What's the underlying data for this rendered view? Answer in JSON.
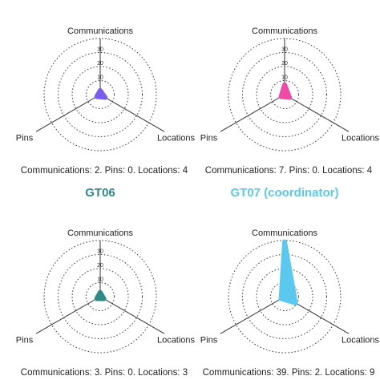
{
  "chart_data": [
    {
      "type": "radar",
      "title": "",
      "axes": [
        "Communications",
        "Pins",
        "Locations"
      ],
      "ticks": [
        "10",
        "20",
        "30"
      ],
      "rmax": 40,
      "color": "#7b5cf0",
      "values": [
        2,
        0,
        4
      ],
      "caption": "Communications: 2. Pins: 0. Locations: 4"
    },
    {
      "type": "radar",
      "title": "",
      "axes": [
        "Communications",
        "Pins",
        "Locations"
      ],
      "ticks": [
        "10",
        "20",
        "30"
      ],
      "rmax": 40,
      "color": "#f04aa8",
      "values": [
        7,
        0,
        4
      ],
      "caption": "Communications: 7. Pins: 0. Locations: 4"
    },
    {
      "type": "radar",
      "title": "GT06",
      "title_color": "#2e8b84",
      "axes": [
        "Communications",
        "Pins",
        "Locations"
      ],
      "ticks": [
        "10",
        "20",
        "30"
      ],
      "rmax": 40,
      "color": "#2e8b84",
      "values": [
        3,
        0,
        3
      ],
      "caption": "Communications: 3. Pins: 0. Locations: 3"
    },
    {
      "type": "radar",
      "title": "GT07 (coordinator)",
      "title_color": "#5bc8f0",
      "axes": [
        "Communications",
        "Pins",
        "Locations"
      ],
      "ticks": [
        "10",
        "20",
        "30"
      ],
      "rmax": 40,
      "color": "#5bc8f0",
      "values": [
        39,
        2,
        9
      ],
      "caption": "Communications: 39. Pins: 2. Locations: 9"
    }
  ]
}
